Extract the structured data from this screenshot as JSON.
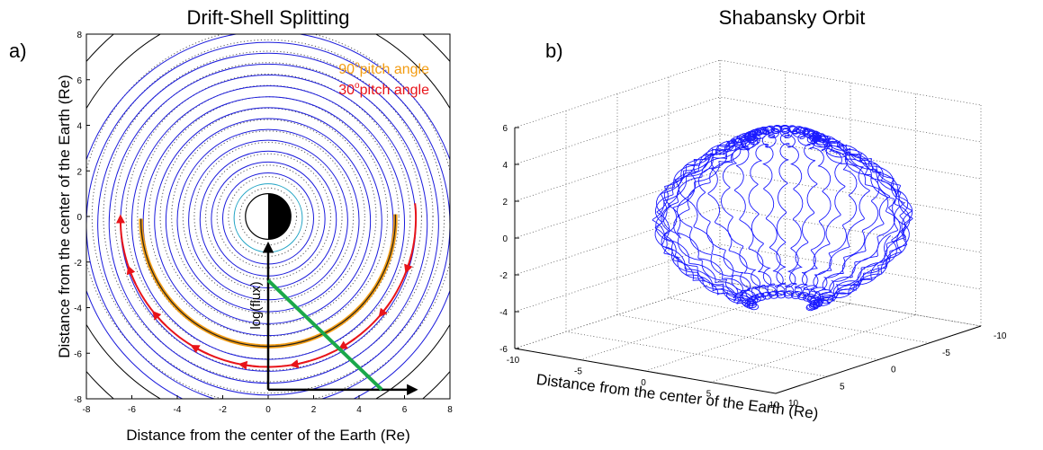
{
  "chart_data": [
    {
      "type": "line",
      "panel_label": "a)",
      "title": "Drift-Shell Splitting",
      "xlabel": "Distance from the center of the Earth (Re)",
      "ylabel": "Distance from the center of the Earth (Re)",
      "xlim": [
        -8,
        8
      ],
      "ylim": [
        -8,
        8
      ],
      "xticks": [
        "-8",
        "-6",
        "-4",
        "-2",
        "0",
        "2",
        "4",
        "6",
        "8"
      ],
      "yticks": [
        "-8",
        "-6",
        "-4",
        "-2",
        "0",
        "2",
        "4",
        "6",
        "8"
      ],
      "grid": false,
      "legend_position": "top-right",
      "legend": [
        {
          "pre": "90",
          "sup": "o",
          "post": "pitch angle",
          "color": "#f39c12"
        },
        {
          "pre": "30",
          "sup": "o",
          "post": "pitch angle",
          "color": "#e8141a"
        }
      ],
      "annotation": "log(flux)",
      "contour_radii": [
        1.5,
        2.0,
        2.5,
        3.0,
        3.5,
        4.0,
        4.5,
        5.0,
        5.5,
        6.0,
        6.5,
        7.0,
        7.5,
        8.0,
        8.5
      ],
      "contour_offset_y": -0.18,
      "dotted_radii": [
        1.25,
        1.75,
        2.25,
        2.75,
        3.25,
        3.75,
        4.25,
        4.75,
        5.25,
        5.75,
        6.25,
        6.75,
        7.25,
        7.75,
        8.25
      ],
      "outer_black_radii": [
        9.3,
        10.5
      ],
      "earth_radius": 1.0,
      "colors": {
        "contour": "#1a1adc",
        "inner_contour": "#1fa3c4",
        "dotted": "#555555",
        "flux_line": "#1aa84a",
        "arrow": "#000000"
      },
      "drift_90": {
        "r": 6.0,
        "start_angle_deg": 0,
        "end_angle_deg": -180
      },
      "drift_30": {
        "r": 6.5,
        "start_angle_deg": 0,
        "end_angle_deg": -180
      },
      "flux_axes": {
        "origin": [
          0,
          -7.6
        ],
        "up_to": [
          0,
          -1.2
        ],
        "right_to": [
          6.5,
          -7.6
        ]
      },
      "flux_line": {
        "from": [
          0,
          -2.8
        ],
        "to": [
          5.0,
          -7.6
        ]
      }
    },
    {
      "type": "scatter",
      "panel_label": "b)",
      "title": "Shabansky Orbit",
      "xlabel": "Distance from the center of the Earth (Re)",
      "zticks": [
        "-6",
        "-4",
        "-2",
        "0",
        "2",
        "4",
        "6"
      ],
      "xticks": [
        "-10",
        "-5",
        "0",
        "5",
        "10"
      ],
      "yticks": [
        "-10",
        "-5",
        "0",
        "5",
        "10"
      ],
      "zlim": [
        -6,
        6
      ],
      "grid": true,
      "color": "#1a1aff"
    }
  ]
}
